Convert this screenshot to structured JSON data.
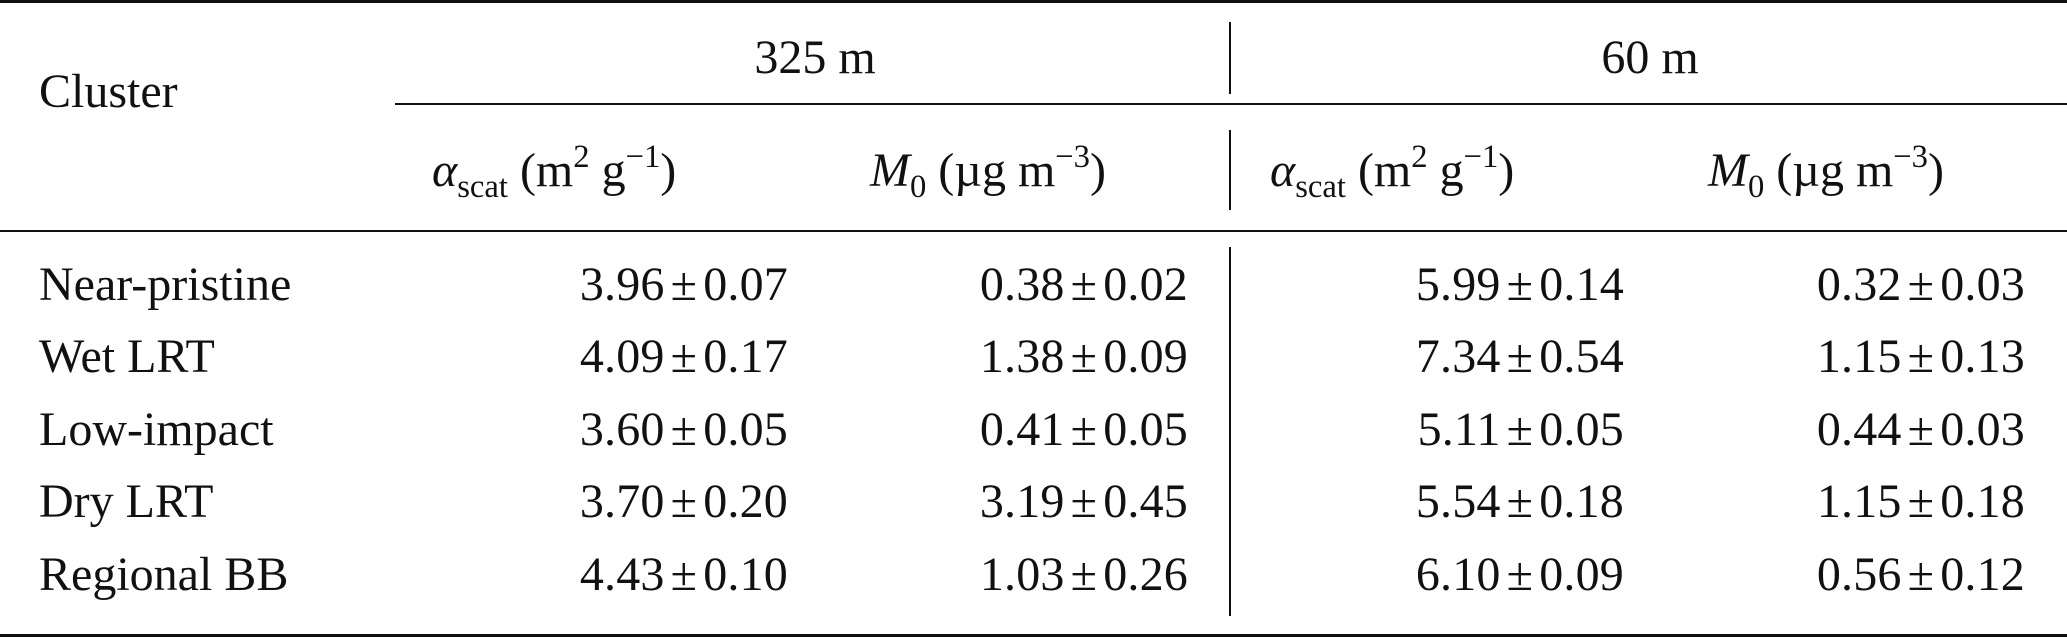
{
  "table": {
    "header": {
      "cluster_label": "Cluster",
      "group_325": "325 m",
      "group_60": "60 m",
      "alpha_symbol": "α",
      "alpha_subscript": "scat",
      "alpha_units_prefix": "(m",
      "alpha_units_exp1": "2",
      "alpha_units_mid": " g",
      "alpha_units_exp2": "−1",
      "alpha_units_suffix": ")",
      "m0_symbol": "M",
      "m0_subscript": "0",
      "m0_units_prefix": "(µg m",
      "m0_units_exp": "−3",
      "m0_units_suffix": ")"
    },
    "pm_symbol": "±",
    "rows": [
      {
        "cluster": "Near-pristine",
        "alpha_325": [
          "3.96",
          "0.07"
        ],
        "m0_325": [
          "0.38",
          "0.02"
        ],
        "alpha_60": [
          "5.99",
          "0.14"
        ],
        "m0_60": [
          "0.32",
          "0.03"
        ]
      },
      {
        "cluster": "Wet LRT",
        "alpha_325": [
          "4.09",
          "0.17"
        ],
        "m0_325": [
          "1.38",
          "0.09"
        ],
        "alpha_60": [
          "7.34",
          "0.54"
        ],
        "m0_60": [
          "1.15",
          "0.13"
        ]
      },
      {
        "cluster": "Low-impact",
        "alpha_325": [
          "3.60",
          "0.05"
        ],
        "m0_325": [
          "0.41",
          "0.05"
        ],
        "alpha_60": [
          "5.11",
          "0.05"
        ],
        "m0_60": [
          "0.44",
          "0.03"
        ]
      },
      {
        "cluster": "Dry LRT",
        "alpha_325": [
          "3.70",
          "0.20"
        ],
        "m0_325": [
          "3.19",
          "0.45"
        ],
        "alpha_60": [
          "5.54",
          "0.18"
        ],
        "m0_60": [
          "1.15",
          "0.18"
        ]
      },
      {
        "cluster": "Regional BB",
        "alpha_325": [
          "4.43",
          "0.10"
        ],
        "m0_325": [
          "1.03",
          "0.26"
        ],
        "alpha_60": [
          "6.10",
          "0.09"
        ],
        "m0_60": [
          "0.56",
          "0.12"
        ]
      }
    ]
  }
}
